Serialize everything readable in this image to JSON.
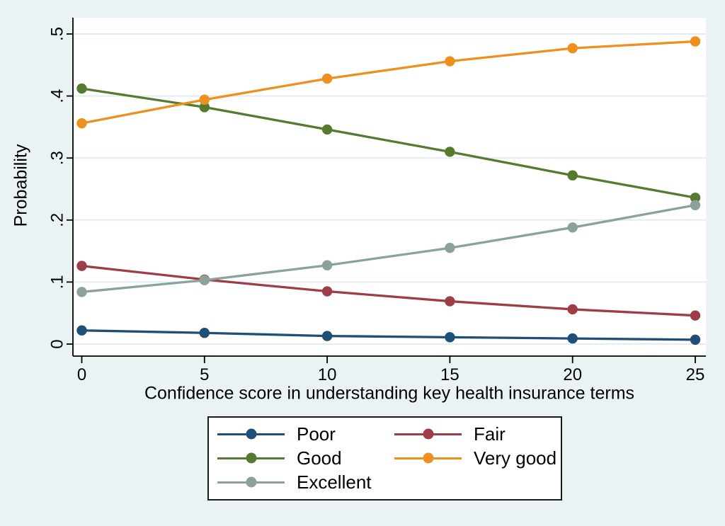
{
  "figure": {
    "background_color": "#eaf2f3",
    "plot_background_color": "#ffffff",
    "gridline_color": "#e3edf0",
    "axis_color": "#000000",
    "legend_background_color": "#ffffff",
    "legend_border_color": "#1a1a1a"
  },
  "chart_data": {
    "type": "line",
    "title": "",
    "xlabel": "Confidence score in understanding key health insurance terms",
    "ylabel": "Probability",
    "x": [
      0,
      5,
      10,
      15,
      20,
      25
    ],
    "xlim": [
      0,
      25
    ],
    "ylim": [
      0,
      0.5
    ],
    "xticks": [
      0,
      5,
      10,
      15,
      20,
      25
    ],
    "xtick_labels": [
      "0",
      "5",
      "10",
      "15",
      "20",
      "25"
    ],
    "yticks": [
      0,
      0.1,
      0.2,
      0.3,
      0.4,
      0.5
    ],
    "ytick_labels": [
      "0",
      ".1",
      ".2",
      ".3",
      ".4",
      ".5"
    ],
    "grid": "horizontal",
    "legend_position": "bottom",
    "series": [
      {
        "name": "Poor",
        "color": "#1f4e77",
        "values": [
          0.022,
          0.018,
          0.013,
          0.011,
          0.009,
          0.007
        ]
      },
      {
        "name": "Fair",
        "color": "#9e3c47",
        "values": [
          0.126,
          0.104,
          0.085,
          0.069,
          0.056,
          0.046
        ]
      },
      {
        "name": "Good",
        "color": "#567a2f",
        "values": [
          0.412,
          0.382,
          0.346,
          0.31,
          0.272,
          0.236
        ]
      },
      {
        "name": "Very good",
        "color": "#ee8f1e",
        "values": [
          0.356,
          0.394,
          0.428,
          0.456,
          0.477,
          0.488
        ]
      },
      {
        "name": "Excellent",
        "color": "#8aa29a",
        "values": [
          0.084,
          0.103,
          0.127,
          0.155,
          0.188,
          0.224
        ]
      }
    ]
  }
}
